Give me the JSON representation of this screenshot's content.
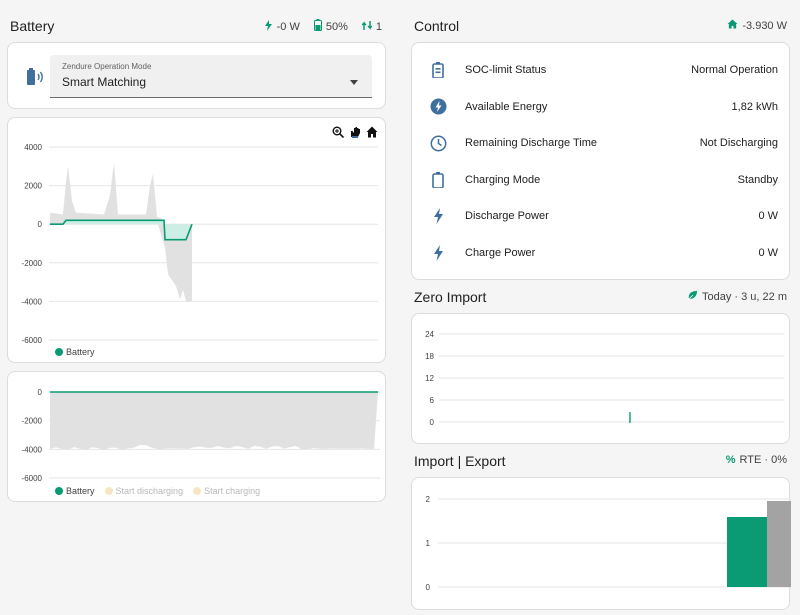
{
  "battery": {
    "title": "Battery",
    "header": {
      "power": "-0 W",
      "soc": "50%",
      "count": "1"
    },
    "mode": {
      "label": "Zendure Operation Mode",
      "value": "Smart Matching"
    },
    "chart1": {
      "yticks": [
        "4000",
        "2000",
        "0",
        "-2000",
        "-4000",
        "-6000"
      ],
      "legend": [
        "Battery"
      ],
      "toolbar": [
        "zoom-icon",
        "pan-icon",
        "home-icon"
      ]
    },
    "chart2": {
      "yticks": [
        "0",
        "-2000",
        "-4000",
        "-6000"
      ],
      "legend": [
        "Battery",
        "Start discharging",
        "Start charging"
      ]
    }
  },
  "control": {
    "title": "Control",
    "header_value": "-3.930 W",
    "rows": [
      {
        "label": "SOC-limit Status",
        "value": "Normal Operation",
        "icon": "battery-icon"
      },
      {
        "label": "Available Energy",
        "value": "1,82 kWh",
        "icon": "flash-circle-icon"
      },
      {
        "label": "Remaining Discharge Time",
        "value": "Not Discharging",
        "icon": "clock-icon"
      },
      {
        "label": "Charging Mode",
        "value": "Standby",
        "icon": "battery-outline-icon"
      },
      {
        "label": "Discharge Power",
        "value": "0 W",
        "icon": "flash-icon"
      },
      {
        "label": "Charge Power",
        "value": "0 W",
        "icon": "flash-icon"
      }
    ]
  },
  "zero_import": {
    "title": "Zero Import",
    "header_value": "Today · 3 u, 22 m",
    "yticks": [
      "24",
      "18",
      "12",
      "6",
      "0"
    ]
  },
  "import_export": {
    "title": "Import | Export",
    "header_value": "RTE · 0%",
    "yticks": [
      "2",
      "1",
      "0"
    ]
  },
  "colors": {
    "accent": "#0a9b74",
    "grey_area": "#e1e1e1",
    "marker": "#f7e6c3",
    "icon_blue": "#3f6f9f"
  },
  "chart_data": [
    {
      "type": "area",
      "series": [
        {
          "name": "Battery",
          "values": [
            0,
            0,
            200,
            200,
            200,
            200,
            200,
            200,
            200,
            -800,
            -800,
            0
          ]
        }
      ],
      "ylim": [
        -6000,
        4000
      ]
    },
    {
      "type": "area",
      "series": [
        {
          "name": "Battery",
          "values": [
            0,
            0,
            0,
            0,
            0,
            0,
            0,
            0,
            0,
            0
          ]
        }
      ],
      "ylim": [
        -6000,
        0
      ]
    },
    {
      "type": "bar",
      "ylim": [
        0,
        24
      ]
    },
    {
      "type": "bar",
      "ylim": [
        0,
        2
      ]
    }
  ]
}
